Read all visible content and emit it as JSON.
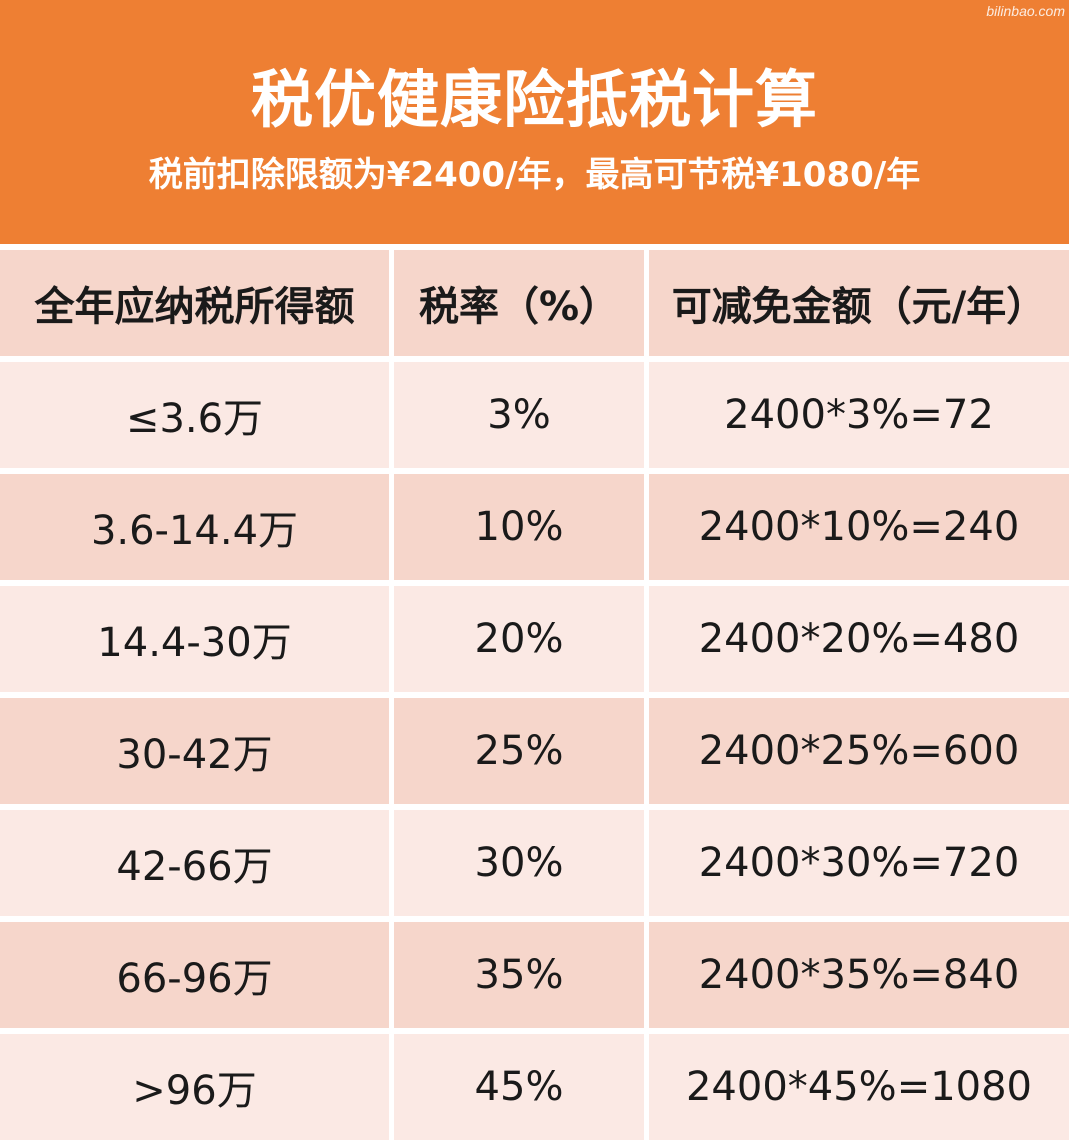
{
  "header": {
    "watermark": "bilinbao.com",
    "title": "税优健康险抵税计算",
    "subtitle": "税前扣除限额为¥2400/年，最高可节税¥1080/年"
  },
  "table": {
    "columns": [
      "全年应纳税所得额",
      "税率（%）",
      "可减免金额（元/年）"
    ],
    "rows": [
      [
        "≤3.6万",
        "3%",
        "2400*3%=72"
      ],
      [
        "3.6-14.4万",
        "10%",
        "2400*10%=240"
      ],
      [
        "14.4-30万",
        "20%",
        "2400*20%=480"
      ],
      [
        "30-42万",
        "25%",
        "2400*25%=600"
      ],
      [
        "42-66万",
        "30%",
        "2400*30%=720"
      ],
      [
        "66-96万",
        "35%",
        "2400*35%=840"
      ],
      [
        ">96万",
        "45%",
        "2400*45%=1080"
      ]
    ]
  },
  "colors": {
    "header_bg": "#ee7f33",
    "row_dark": "#f6d6cb",
    "row_light": "#fbe9e4"
  }
}
